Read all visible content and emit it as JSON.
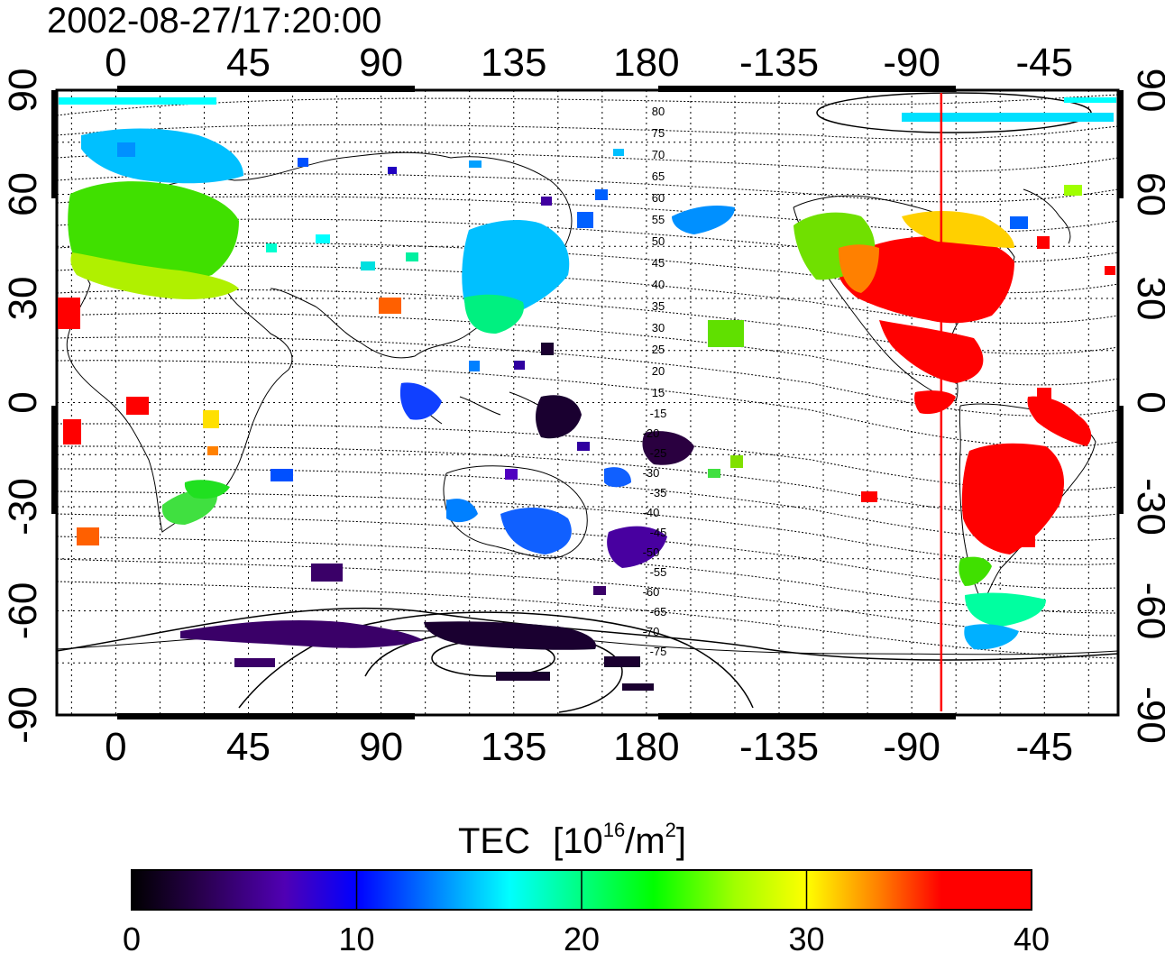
{
  "timestamp": "2002-08-27/17:20:00",
  "map": {
    "longitude_ticks_top": [
      "0",
      "45",
      "90",
      "135",
      "180",
      "-135",
      "-90",
      "-45"
    ],
    "longitude_ticks_bottom": [
      "0",
      "45",
      "90",
      "135",
      "180",
      "-135",
      "-90",
      "-45"
    ],
    "latitude_ticks_left": [
      "90",
      "60",
      "30",
      "0",
      "-30",
      "-60",
      "-90"
    ],
    "latitude_ticks_right": [
      "90",
      "60",
      "30",
      "0",
      "-30",
      "-60",
      "-90"
    ],
    "longitude_tick_values": [
      0,
      45,
      90,
      135,
      180,
      225,
      270,
      315
    ],
    "latitude_tick_values": [
      90,
      60,
      30,
      0,
      -30,
      -60,
      -90
    ],
    "terminator_longitude": -80,
    "terminator_color": "#ff0000",
    "contour_labels": [
      "80",
      "75",
      "70",
      "65",
      "60",
      "55",
      "50",
      "45",
      "40",
      "35",
      "30",
      "25",
      "20",
      "15",
      "-15",
      "-20",
      "-25",
      "-30",
      "-35",
      "-40",
      "-45",
      "-50",
      "-55",
      "-60",
      "-65",
      "-70",
      "-75"
    ]
  },
  "colorbar": {
    "title": "TEC",
    "unit_base": "10",
    "unit_exp": "16",
    "unit_sep": "/m",
    "unit_exp2": "2",
    "min": 0,
    "max": 40,
    "tick_labels": [
      "0",
      "10",
      "20",
      "30",
      "40"
    ],
    "tick_values": [
      0,
      10,
      20,
      30,
      40
    ],
    "colors": [
      "#000000",
      "#3a0068",
      "#5a00c8",
      "#0000ff",
      "#0078ff",
      "#00ffff",
      "#00ff80",
      "#00ff00",
      "#a0ff00",
      "#ffff00",
      "#ff8000",
      "#ff0000",
      "#ff0000"
    ]
  }
}
